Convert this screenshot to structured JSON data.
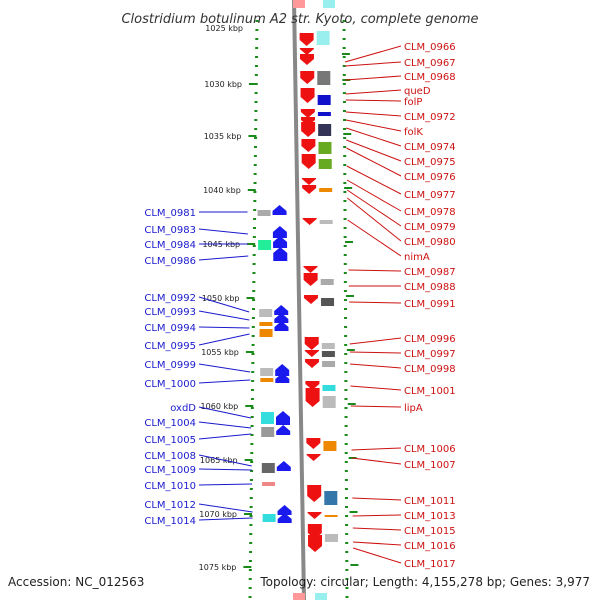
{
  "title": "Clostridium botulinum A2 str. Kyoto, complete genome",
  "footer": {
    "accession": "Accession: NC_012563",
    "topology": "Topology: circular; Length: 4,155,278 bp; Genes: 3,977"
  },
  "colors": {
    "left_label": "#1a1acc",
    "right_label": "#cc1111",
    "forward_gene": "#ee1111",
    "reverse_gene": "#1a1aee",
    "backbone": "#888888",
    "tick": "#1a8a1a"
  },
  "scale": {
    "top_partial": "1025 kbp",
    "ticks": [
      "1030 kbp",
      "1035 kbp",
      "1040 kbp",
      "1045 kbp",
      "1050 kbp",
      "1055 kbp",
      "1060 kbp",
      "1065 kbp",
      "1070 kbp",
      "1075 kbp"
    ]
  },
  "left_labels": [
    "CLM_0981",
    "CLM_0983",
    "CLM_0984",
    "CLM_0986",
    "CLM_0992",
    "CLM_0993",
    "CLM_0994",
    "CLM_0995",
    "CLM_0999",
    "CLM_1000",
    "oxdD",
    "CLM_1004",
    "CLM_1005",
    "CLM_1008",
    "CLM_1009",
    "CLM_1010",
    "CLM_1012",
    "CLM_1014"
  ],
  "right_labels": [
    "CLM_0966",
    "CLM_0967",
    "CLM_0968",
    "queD",
    "folP",
    "CLM_0972",
    "folK",
    "CLM_0974",
    "CLM_0975",
    "CLM_0976",
    "CLM_0977",
    "CLM_0978",
    "CLM_0979",
    "CLM_0980",
    "nimA",
    "CLM_0987",
    "CLM_0988",
    "CLM_0991",
    "CLM_0996",
    "CLM_0997",
    "CLM_0998",
    "CLM_1001",
    "lipA",
    "CLM_1006",
    "CLM_1007",
    "CLM_1011",
    "CLM_1013",
    "CLM_1015",
    "CLM_1016",
    "CLM_1017"
  ]
}
